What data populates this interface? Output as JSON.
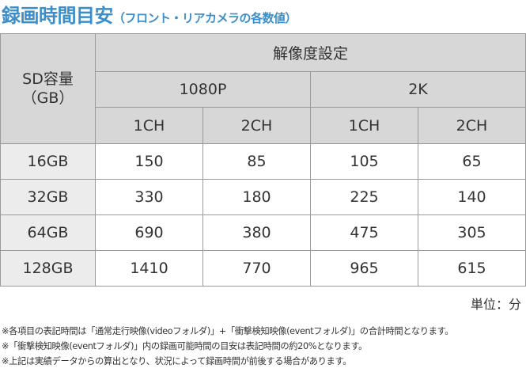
{
  "title": {
    "main": "録画時間目安",
    "sub": "（フロント・リアカメラの各数値）"
  },
  "table": {
    "sd_header_line1": "SD容量",
    "sd_header_line2": "（GB）",
    "resolution_header": "解像度設定",
    "resolutions": [
      "1080P",
      "2K"
    ],
    "channels": [
      "1CH",
      "2CH",
      "1CH",
      "2CH"
    ],
    "rows": [
      {
        "capacity": "16GB",
        "values": [
          "150",
          "85",
          "105",
          "65"
        ]
      },
      {
        "capacity": "32GB",
        "values": [
          "330",
          "180",
          "225",
          "140"
        ]
      },
      {
        "capacity": "64GB",
        "values": [
          "690",
          "380",
          "475",
          "305"
        ]
      },
      {
        "capacity": "128GB",
        "values": [
          "1410",
          "770",
          "965",
          "615"
        ]
      }
    ]
  },
  "unit_label": "単位：分",
  "notes": [
    "※各項目の表記時間は「通常走行映像(videoフォルダ)」+「衝撃検知映像(eventフォルダ)」の合計時間となります。",
    "※「衝撃検知映像(eventフォルダ)」内の録画可能時間の目安は表記時間の約20%となります。",
    "※上記は実績データからの算出となり、状況によって録画時間が前後する場合があります。"
  ]
}
